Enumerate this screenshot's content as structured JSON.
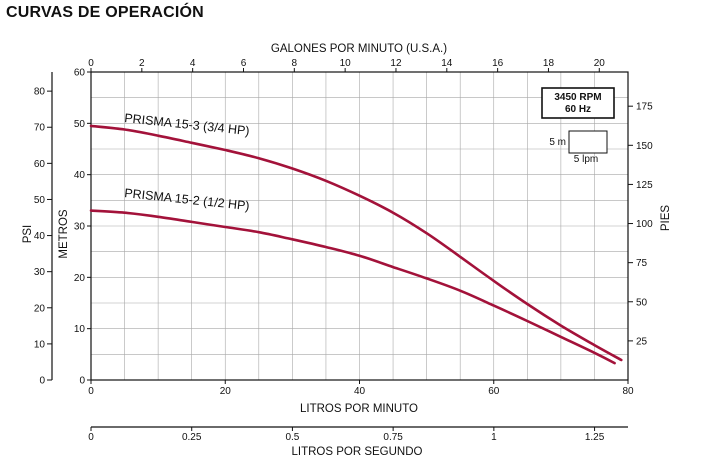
{
  "page": {
    "title": "CURVAS DE OPERACIÓN"
  },
  "chart_data": {
    "type": "line",
    "title": "CURVAS DE OPERACIÓN",
    "x_primary": {
      "label": "LITROS POR MINUTO",
      "range": [
        0,
        80
      ],
      "ticks": [
        0,
        20,
        40,
        60,
        80
      ]
    },
    "x_top": {
      "label": "GALONES POR MINUTO (U.S.A.)",
      "range": [
        0,
        21.13
      ],
      "ticks": [
        0,
        2,
        4,
        6,
        8,
        10,
        12,
        14,
        16,
        18,
        20
      ]
    },
    "x_bottom": {
      "label": "LITROS POR SEGUNDO",
      "range": [
        0,
        1.333
      ],
      "ticks": [
        0,
        0.25,
        0.5,
        0.75,
        1,
        1.25
      ],
      "tick_labels": [
        "0",
        "0.25",
        "0.5",
        "0.75",
        "1",
        "1.25"
      ]
    },
    "y_primary": {
      "label": "METROS",
      "range": [
        0,
        60
      ],
      "ticks": [
        0,
        10,
        20,
        30,
        40,
        50,
        60
      ]
    },
    "y_psi": {
      "label": "PSI",
      "range": [
        0,
        85.3
      ],
      "ticks": [
        0,
        10,
        20,
        30,
        40,
        50,
        60,
        70,
        80
      ]
    },
    "y_pies": {
      "label": "PIES",
      "range": [
        0,
        196.85
      ],
      "ticks": [
        25,
        50,
        75,
        100,
        125,
        150,
        175
      ]
    },
    "grid": true,
    "series_color": "#a3123a",
    "series": [
      {
        "name": "PRISMA 15-3 (3/4 HP)",
        "x": [
          0,
          5,
          10,
          15,
          20,
          25,
          30,
          35,
          40,
          45,
          50,
          55,
          60,
          65,
          70,
          75,
          79
        ],
        "y": [
          49.5,
          48.8,
          47.6,
          46.2,
          44.8,
          43.2,
          41.2,
          38.8,
          35.9,
          32.6,
          28.6,
          24.0,
          19.3,
          14.8,
          10.6,
          6.8,
          3.9
        ]
      },
      {
        "name": "PRISMA 15-2 (1/2 HP)",
        "x": [
          0,
          5,
          10,
          15,
          20,
          25,
          30,
          35,
          40,
          45,
          50,
          55,
          60,
          65,
          70,
          75,
          78
        ],
        "y": [
          33.0,
          32.6,
          31.8,
          30.8,
          29.8,
          28.8,
          27.4,
          25.9,
          24.2,
          22.0,
          19.8,
          17.4,
          14.5,
          11.5,
          8.4,
          5.3,
          3.3
        ]
      }
    ],
    "annotations": {
      "rpm": "3450 RPM",
      "hz": "60 Hz",
      "scale_vertical": "5 m",
      "scale_horizontal": "5 lpm"
    }
  }
}
